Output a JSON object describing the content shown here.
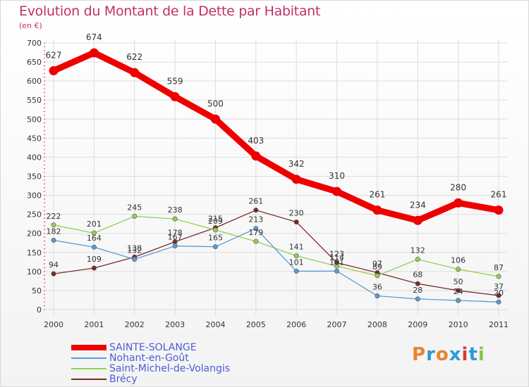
{
  "header": {
    "title": "Evolution du Montant de la Dette par Habitant",
    "subtitle": "(en €)"
  },
  "logo": {
    "text": "Proxiti",
    "letter_colors": [
      "#e8842a",
      "#2e9ad8",
      "#e8842a",
      "#2e9ad8",
      "#d43a3a",
      "#2e9ad8",
      "#8bc34a"
    ]
  },
  "chart_data": {
    "type": "line",
    "title": "Evolution du Montant de la Dette par Habitant",
    "subtitle": "(en €)",
    "xlabel": "",
    "ylabel": "",
    "x": [
      "2000",
      "2001",
      "2002",
      "2003",
      "2004",
      "2005",
      "2006",
      "2007",
      "2008",
      "2009",
      "2010",
      "2011"
    ],
    "ylim": [
      0,
      700
    ],
    "yticks": [
      0,
      50,
      100,
      150,
      200,
      250,
      300,
      350,
      400,
      450,
      500,
      550,
      600,
      650,
      700
    ],
    "grid": true,
    "legend_position": "bottom-left",
    "series": [
      {
        "name": "SAINTE-SOLANGE",
        "color": "#ee0000",
        "values": [
          627,
          674,
          622,
          559,
          500,
          403,
          342,
          310,
          261,
          234,
          280,
          261
        ]
      },
      {
        "name": "Nohant-en-Goût",
        "color": "#5b9bd5",
        "values": [
          182,
          164,
          132,
          167,
          165,
          213,
          101,
          101,
          36,
          28,
          24,
          20
        ]
      },
      {
        "name": "Saint-Michel-de-Volangis",
        "color": "#90d050",
        "values": [
          222,
          201,
          245,
          238,
          209,
          179,
          141,
          114,
          89,
          132,
          106,
          87
        ]
      },
      {
        "name": "Brécy",
        "color": "#7b2a2a",
        "values": [
          94,
          109,
          138,
          178,
          215,
          261,
          230,
          123,
          97,
          68,
          50,
          37
        ]
      }
    ]
  }
}
